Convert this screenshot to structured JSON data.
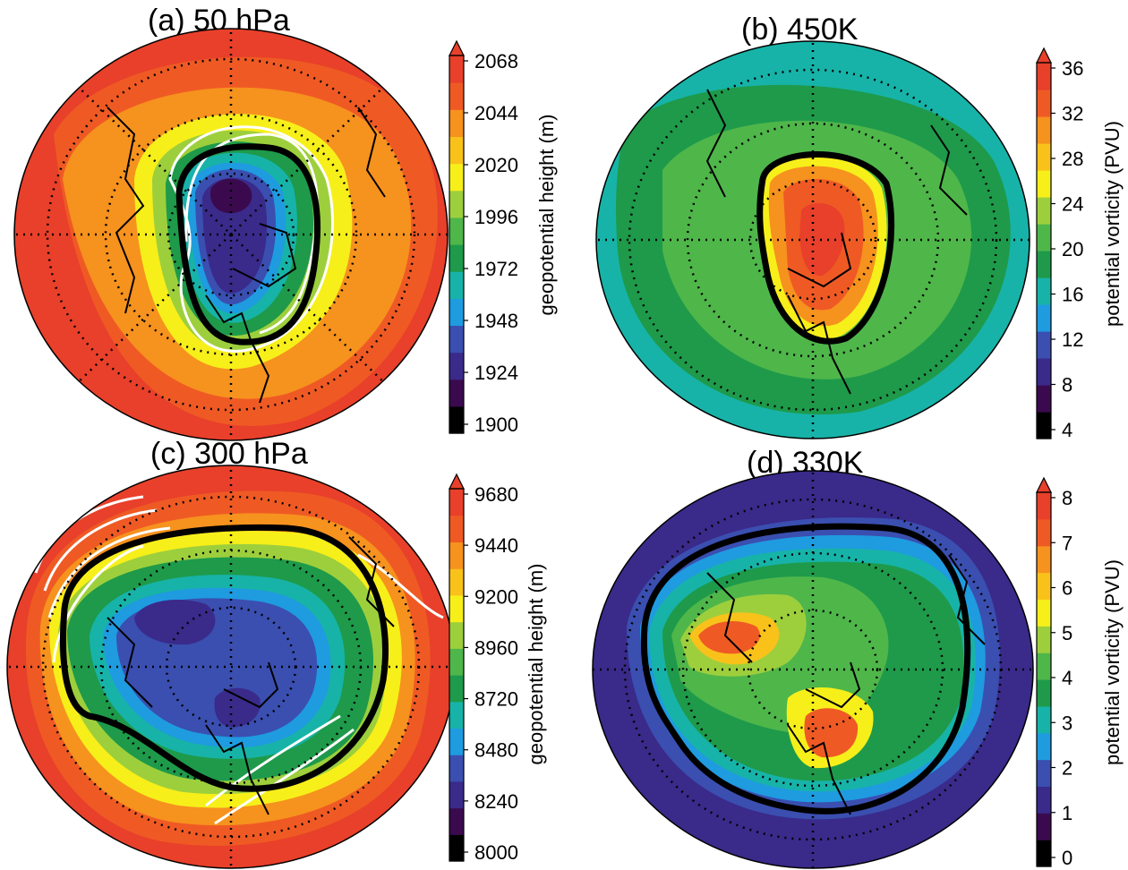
{
  "panels": {
    "a": {
      "title": "(a) 50 hPa",
      "colorbar_label": "geopotential height (m)",
      "ticks": [
        "2068",
        "2044",
        "2020",
        "1996",
        "1972",
        "1948",
        "1924",
        "1900"
      ]
    },
    "b": {
      "title": "(b) 450K",
      "colorbar_label": "potential vorticity (PVU)",
      "ticks": [
        "36",
        "32",
        "28",
        "24",
        "20",
        "16",
        "12",
        "8",
        "4"
      ]
    },
    "c": {
      "title": "(c) 300 hPa",
      "colorbar_label": "geopotential height (m)",
      "ticks": [
        "9680",
        "9440",
        "9200",
        "8960",
        "8720",
        "8480",
        "8240",
        "8000"
      ]
    },
    "d": {
      "title": "(d) 330K",
      "colorbar_label": "potential vorticity (PVU)",
      "ticks": [
        "8",
        "7",
        "6",
        "5",
        "4",
        "3",
        "2",
        "1",
        "0"
      ]
    }
  },
  "colors": {
    "colormap": [
      "#000000",
      "#3b0a4e",
      "#3a2a8a",
      "#3a4fb0",
      "#1f9be0",
      "#17b3a8",
      "#1e9a4a",
      "#4fb64a",
      "#9dcf3c",
      "#f7ef1a",
      "#f8c21b",
      "#f6921e",
      "#ef5a24",
      "#e8402a"
    ],
    "contour_black": "#000000",
    "contour_white": "#ffffff"
  }
}
